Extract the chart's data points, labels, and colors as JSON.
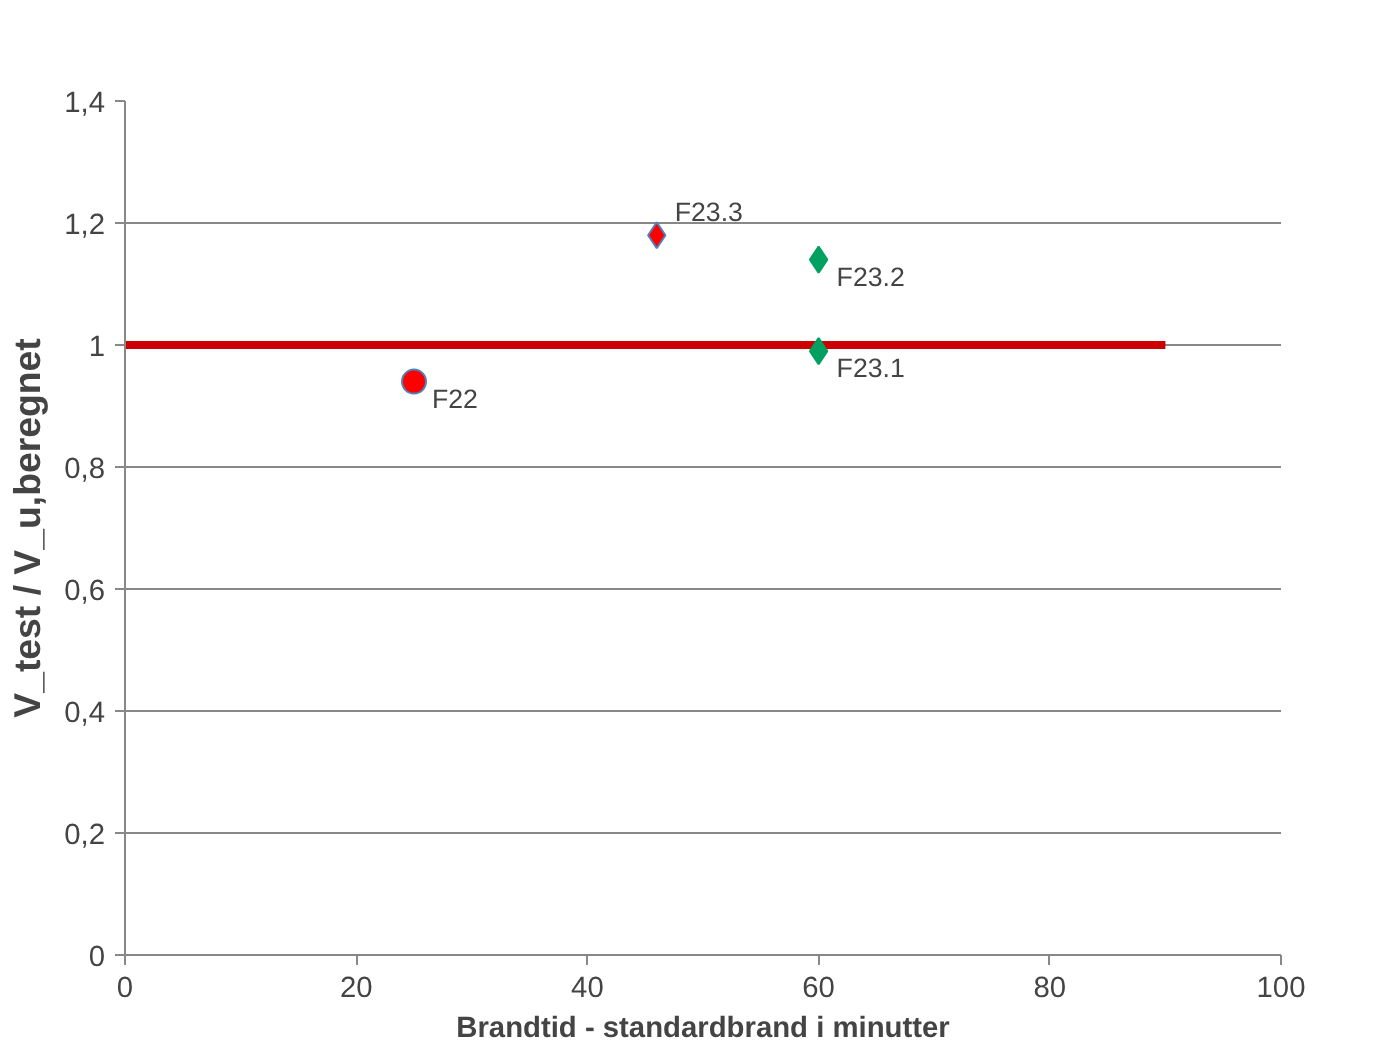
{
  "chart_data": {
    "type": "scatter",
    "xlabel": "Brandtid - standardbrand i minutter",
    "ylabel": "V_test / V_u,beregnet",
    "xlim": [
      0,
      100
    ],
    "xticks": [
      0,
      20,
      40,
      60,
      80,
      100
    ],
    "ylim": [
      0,
      1.4
    ],
    "yticks": [
      0,
      {
        "value": 0.2,
        "label": "0,2"
      },
      {
        "value": 0.4,
        "label": "0,4"
      },
      {
        "value": 0.6,
        "label": "0,6"
      },
      {
        "value": 0.8,
        "label": "0,8"
      },
      1,
      {
        "value": 1.2,
        "label": "1,2"
      },
      {
        "value": 1.4,
        "label": "1,4"
      }
    ],
    "grid": "y",
    "series": [
      {
        "type": "line",
        "color": "#cc0000",
        "x": [
          0,
          90
        ],
        "values": [
          1,
          1
        ]
      },
      {
        "name": "F22",
        "color": "#ff0000",
        "x": [
          25
        ],
        "values": [
          0.94
        ],
        "marker": "circle"
      },
      {
        "name": "F23.3",
        "color": "#ff0000",
        "x": [
          46
        ],
        "values": [
          1.18
        ],
        "marker": "diamond"
      },
      {
        "name": "F23.2",
        "color": "#00a060",
        "x": [
          60
        ],
        "values": [
          1.14
        ],
        "marker": "diamond"
      },
      {
        "name": "F23.1",
        "color": "#00a060",
        "x": [
          60
        ],
        "values": [
          0.99
        ],
        "marker": "diamond"
      }
    ]
  }
}
